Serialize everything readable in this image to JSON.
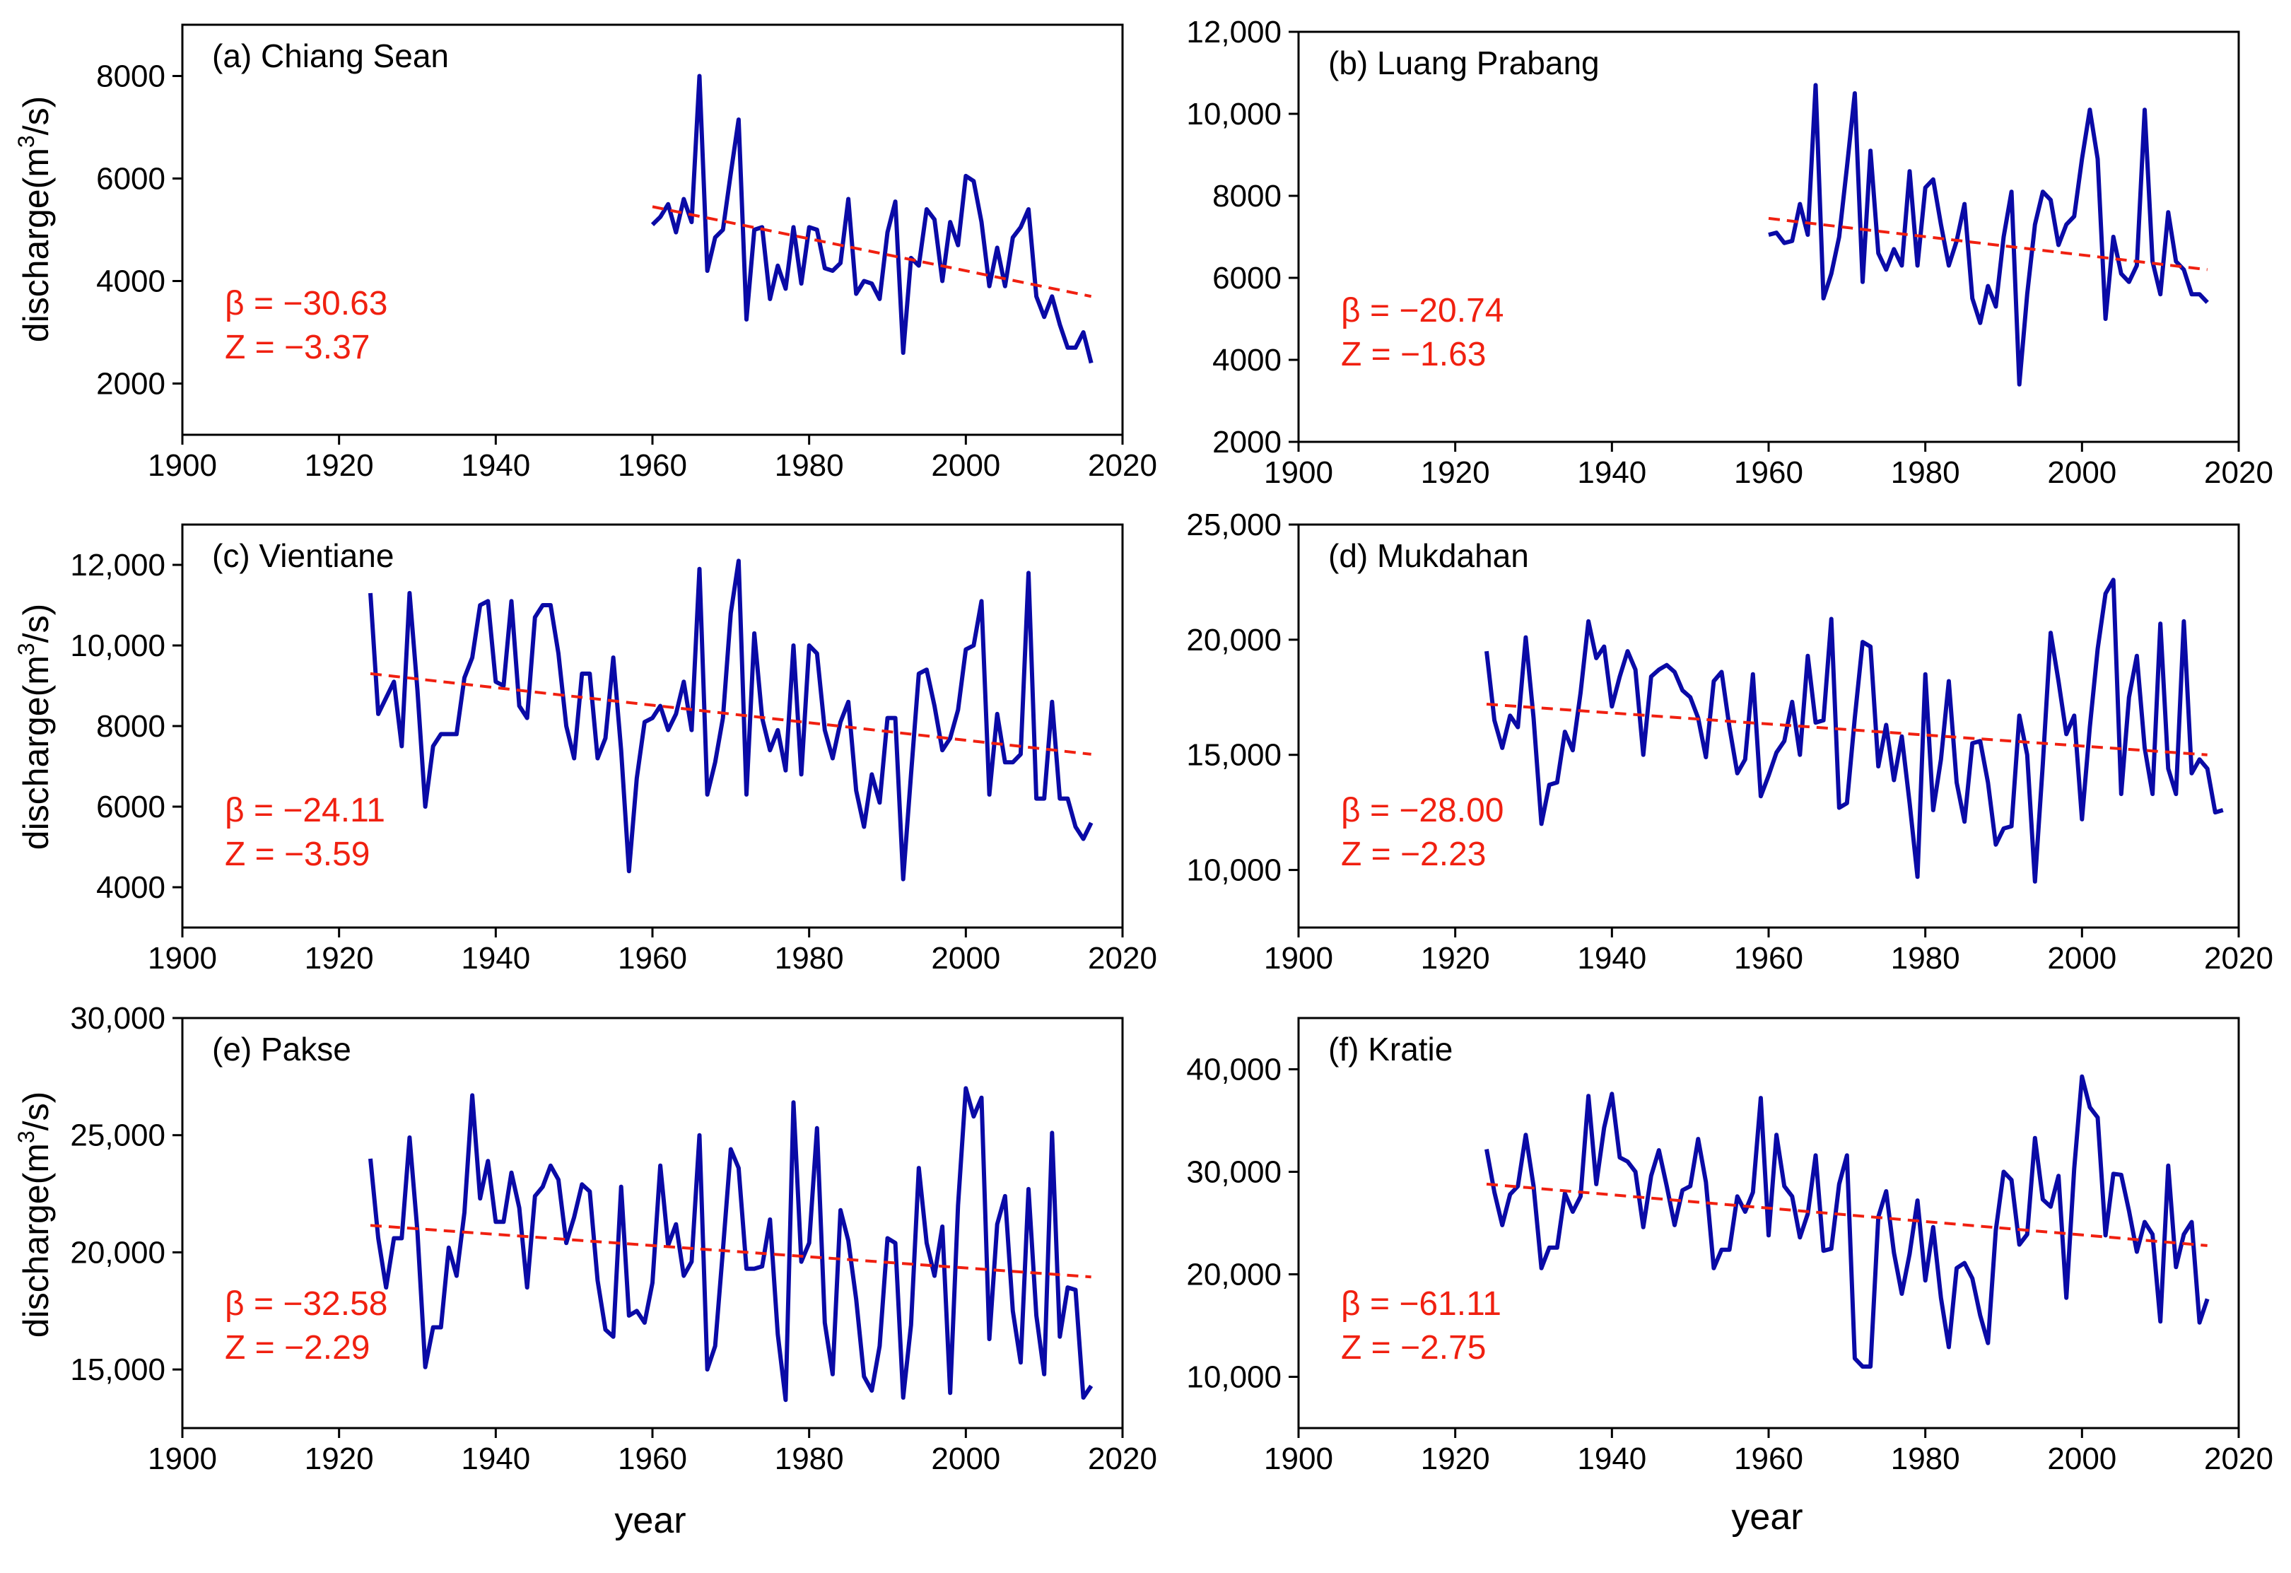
{
  "figure": {
    "common_xlabel": "year",
    "ylabel_main": "discharge(m",
    "ylabel_sup": "3",
    "ylabel_tail": "/s)"
  },
  "colors": {
    "series": "#0A0AA6",
    "trend": "#F02010",
    "stats": "#F02010",
    "axis": "#000000"
  },
  "chart_data": [
    {
      "type": "line",
      "title": "(a) Chiang Sean",
      "xlabel": "",
      "ylabel": "discharge(m3/s)",
      "xlim": [
        1900,
        2020
      ],
      "ylim": [
        1000,
        9000
      ],
      "xticks": [
        1900,
        1920,
        1940,
        1960,
        1980,
        2000,
        2020
      ],
      "yticks": [
        2000,
        4000,
        6000,
        8000
      ],
      "ytick_labels": [
        "2000",
        "4000",
        "6000",
        "8000"
      ],
      "start_year": 1960,
      "values": [
        5100,
        5250,
        5500,
        4950,
        5600,
        5150,
        8000,
        4200,
        4850,
        5000,
        6100,
        7150,
        3250,
        5000,
        5050,
        3650,
        4300,
        3850,
        5050,
        3950,
        5050,
        5000,
        4250,
        4200,
        4350,
        5600,
        3750,
        4000,
        3950,
        3650,
        4950,
        5550,
        2600,
        4450,
        4300,
        5400,
        5200,
        4000,
        5150,
        4700,
        6050,
        5950,
        5150,
        3900,
        4650,
        3900,
        4850,
        5050,
        5400,
        3700,
        3300,
        3700,
        3150,
        2700,
        2700,
        3000,
        2400
      ],
      "trend": {
        "x": [
          1960,
          2016
        ],
        "y": [
          5450,
          3700
        ]
      },
      "beta": "β = −30.63",
      "z": "Z = −3.37"
    },
    {
      "type": "line",
      "title": "(b) Luang Prabang",
      "xlabel": "",
      "ylabel": "",
      "xlim": [
        1900,
        2020
      ],
      "ylim": [
        2000,
        12000
      ],
      "xticks": [
        1900,
        1920,
        1940,
        1960,
        1980,
        2000,
        2020
      ],
      "yticks": [
        2000,
        4000,
        6000,
        8000,
        10000,
        12000
      ],
      "ytick_labels": [
        "2000",
        "4000",
        "6000",
        "8000",
        "10,000",
        "12,000"
      ],
      "start_year": 1960,
      "values": [
        7050,
        7100,
        6850,
        6900,
        7800,
        7050,
        10700,
        5500,
        6100,
        7000,
        8700,
        10500,
        5900,
        9100,
        6600,
        6200,
        6700,
        6300,
        8600,
        6300,
        8200,
        8400,
        7300,
        6300,
        6900,
        7800,
        5500,
        4900,
        5800,
        5300,
        7000,
        8100,
        3400,
        5600,
        7300,
        8100,
        7900,
        6800,
        7300,
        7500,
        8900,
        10100,
        8900,
        5000,
        7000,
        6100,
        5900,
        6300,
        10100,
        6400,
        5600,
        7600,
        6400,
        6200,
        5600,
        5600,
        5400
      ],
      "trend": {
        "x": [
          1960,
          2016
        ],
        "y": [
          7450,
          6200
        ]
      },
      "beta": "β = −20.74",
      "z": "Z = −1.63"
    },
    {
      "type": "line",
      "title": "(c) Vientiane",
      "xlabel": "",
      "ylabel": "discharge(m3/s)",
      "xlim": [
        1900,
        2020
      ],
      "ylim": [
        3000,
        13000
      ],
      "xticks": [
        1900,
        1920,
        1940,
        1960,
        1980,
        2000,
        2020
      ],
      "yticks": [
        4000,
        6000,
        8000,
        10000,
        12000
      ],
      "ytick_labels": [
        "4000",
        "6000",
        "8000",
        "10,000",
        "12,000"
      ],
      "start_year": 1924,
      "values": [
        11300,
        8300,
        8700,
        9100,
        7500,
        11300,
        8900,
        6000,
        7500,
        7800,
        7800,
        7800,
        9200,
        9700,
        11000,
        11100,
        9100,
        9000,
        11100,
        8500,
        8200,
        10700,
        11000,
        11000,
        9800,
        8000,
        7200,
        9300,
        9300,
        7200,
        7700,
        9700,
        7400,
        4400,
        6700,
        8100,
        8200,
        8500,
        7900,
        8300,
        9100,
        7900,
        11900,
        6300,
        7100,
        8200,
        10800,
        12100,
        6300,
        10300,
        8200,
        7400,
        7900,
        6900,
        10000,
        6800,
        10000,
        9800,
        7900,
        7200,
        8100,
        8600,
        6400,
        5500,
        6800,
        6100,
        8200,
        8200,
        4200,
        6800,
        9300,
        9400,
        8500,
        7400,
        7700,
        8400,
        9900,
        10000,
        11100,
        6300,
        8300,
        7100,
        7100,
        7300,
        11800,
        6200,
        6200,
        8600,
        6200,
        6200,
        5500,
        5200,
        5600
      ],
      "trend": {
        "x": [
          1924,
          2016
        ],
        "y": [
          9300,
          7300
        ]
      },
      "beta": "β = −24.11",
      "z": "Z = −3.59"
    },
    {
      "type": "line",
      "title": "(d) Mukdahan",
      "xlabel": "",
      "ylabel": "",
      "xlim": [
        1900,
        2020
      ],
      "ylim": [
        7500,
        25000
      ],
      "xticks": [
        1900,
        1920,
        1940,
        1960,
        1980,
        2000,
        2020
      ],
      "yticks": [
        10000,
        15000,
        20000,
        25000
      ],
      "ytick_labels": [
        "10,000",
        "15,000",
        "20,000",
        "25,000"
      ],
      "start_year": 1924,
      "values": [
        19500,
        16500,
        15300,
        16700,
        16200,
        20100,
        16600,
        12000,
        13700,
        13800,
        16000,
        15200,
        17700,
        20800,
        19200,
        19700,
        17100,
        18400,
        19500,
        18700,
        15000,
        18400,
        18700,
        18900,
        18600,
        17800,
        17500,
        16600,
        14900,
        18200,
        18600,
        16200,
        14200,
        14800,
        18500,
        13200,
        14100,
        15100,
        15600,
        17300,
        15000,
        19300,
        16400,
        16500,
        20900,
        12700,
        12900,
        16600,
        19900,
        19700,
        14500,
        16300,
        13900,
        15800,
        12900,
        9700,
        18500,
        12600,
        14800,
        18200,
        13800,
        12100,
        15500,
        15600,
        13800,
        11100,
        11800,
        11900,
        16700,
        15000,
        9500,
        14600,
        20300,
        18200,
        15900,
        16700,
        12200,
        16200,
        19600,
        22000,
        22600,
        13300,
        17500,
        19300,
        15300,
        13300,
        20700,
        14400,
        13300,
        20800,
        14200,
        14800,
        14400,
        12500,
        12600
      ],
      "trend": {
        "x": [
          1924,
          2016
        ],
        "y": [
          17200,
          15000
        ]
      },
      "beta": "β = −28.00",
      "z": "Z = −2.23"
    },
    {
      "type": "line",
      "title": "(e) Pakse",
      "xlabel": "year",
      "ylabel": "discharge(m3/s)",
      "xlim": [
        1900,
        2020
      ],
      "ylim": [
        12500,
        30000
      ],
      "xticks": [
        1900,
        1920,
        1940,
        1960,
        1980,
        2000,
        2020
      ],
      "yticks": [
        15000,
        20000,
        25000,
        30000
      ],
      "ytick_labels": [
        "15,000",
        "20,000",
        "25,000",
        "30,000"
      ],
      "start_year": 1924,
      "values": [
        24000,
        20600,
        18500,
        20600,
        20600,
        24900,
        20900,
        15100,
        16800,
        16800,
        20200,
        19000,
        21700,
        26700,
        22300,
        23900,
        21300,
        21300,
        23400,
        21900,
        18500,
        22400,
        22800,
        23700,
        23100,
        20400,
        21500,
        22900,
        22600,
        18800,
        16700,
        16400,
        22800,
        17300,
        17500,
        17000,
        18700,
        23700,
        20300,
        21200,
        19000,
        19600,
        25000,
        15000,
        16000,
        20100,
        24400,
        23600,
        19300,
        19300,
        19400,
        21400,
        16500,
        13700,
        26400,
        19600,
        20400,
        25300,
        17000,
        14800,
        21800,
        20500,
        18000,
        14700,
        14100,
        16000,
        20600,
        20400,
        13800,
        16900,
        23600,
        20400,
        19000,
        21100,
        14000,
        22000,
        27000,
        25800,
        26600,
        16300,
        21200,
        22400,
        17500,
        15300,
        22700,
        17300,
        14800,
        25100,
        16400,
        18500,
        18400,
        13800,
        14300
      ],
      "trend": {
        "x": [
          1924,
          2016
        ],
        "y": [
          21150,
          18950
        ]
      },
      "beta": "β = −32.58",
      "z": "Z = −2.29"
    },
    {
      "type": "line",
      "title": "(f) Kratie",
      "xlabel": "year",
      "ylabel": "",
      "xlim": [
        1900,
        2020
      ],
      "ylim": [
        5000,
        45000
      ],
      "xticks": [
        1900,
        1920,
        1940,
        1960,
        1980,
        2000,
        2020
      ],
      "yticks": [
        10000,
        20000,
        30000,
        40000
      ],
      "ytick_labels": [
        "10,000",
        "20,000",
        "30,000",
        "40,000"
      ],
      "start_year": 1924,
      "values": [
        32200,
        28000,
        24800,
        27800,
        28600,
        33600,
        28600,
        20600,
        22600,
        22600,
        27900,
        26100,
        27600,
        37400,
        28800,
        34300,
        37600,
        31400,
        31000,
        30000,
        24600,
        29600,
        32100,
        28600,
        24800,
        28200,
        28600,
        33200,
        29000,
        20600,
        22400,
        22400,
        27600,
        26100,
        28000,
        37200,
        23800,
        33600,
        28600,
        27600,
        23600,
        25900,
        31600,
        22300,
        22500,
        28800,
        31600,
        11800,
        11000,
        11000,
        25600,
        28100,
        22100,
        18100,
        22000,
        27200,
        19400,
        24600,
        17700,
        12900,
        20600,
        21100,
        19600,
        16000,
        13300,
        24300,
        30000,
        29200,
        22900,
        23900,
        33300,
        27300,
        26600,
        29600,
        17700,
        30300,
        39300,
        36300,
        35300,
        23800,
        29800,
        29700,
        26200,
        22200,
        25100,
        23900,
        15400,
        30600,
        20700,
        23900,
        25100,
        15300,
        17600
      ],
      "trend": {
        "x": [
          1924,
          2016
        ],
        "y": [
          28800,
          22800
        ]
      },
      "beta": "β = −61.11",
      "z": "Z = −2.75"
    }
  ]
}
